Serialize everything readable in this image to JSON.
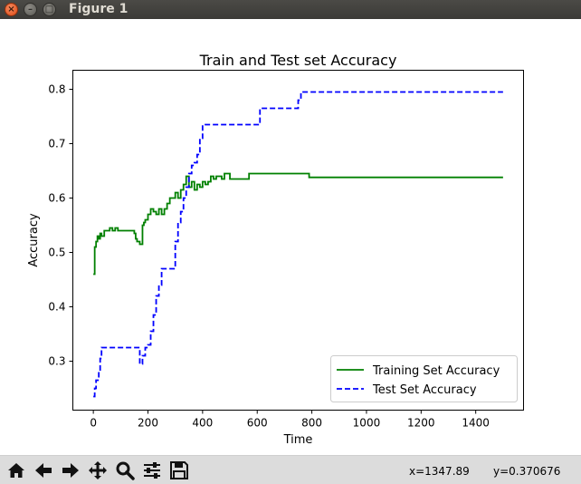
{
  "window": {
    "title": "Figure 1",
    "buttons": {
      "close": "×",
      "minimize": "–",
      "maximize": "□"
    }
  },
  "toolbar": {
    "buttons": [
      "home-icon",
      "back-icon",
      "forward-icon",
      "pan-icon",
      "zoom-icon",
      "configure-subplots-icon",
      "save-icon"
    ],
    "x_readout": "x=1347.89",
    "y_readout": "y=0.370676"
  },
  "colors": {
    "training": "#008000",
    "test": "#0000ff",
    "titlebar": "#3c3b37",
    "toolbar": "#dcdcdc"
  },
  "chart_data": {
    "type": "line",
    "title": "Train and Test set Accuracy",
    "xlabel": "Time",
    "ylabel": "Accuracy",
    "xlim": [
      -75,
      1575
    ],
    "ylim": [
      0.21,
      0.835
    ],
    "xticks": [
      0,
      200,
      400,
      600,
      800,
      1000,
      1200,
      1400
    ],
    "yticks": [
      0.3,
      0.4,
      0.5,
      0.6,
      0.7,
      0.8
    ],
    "xtick_labels": [
      "0",
      "200",
      "400",
      "600",
      "800",
      "1000",
      "1200",
      "1400"
    ],
    "ytick_labels": [
      "0.3",
      "0.4",
      "0.5",
      "0.6",
      "0.7",
      "0.8"
    ],
    "grid": false,
    "legend_position": "lower-right",
    "series": [
      {
        "name": "Training Set Accuracy",
        "style": "solid",
        "color": "#008000",
        "x": [
          0,
          5,
          10,
          15,
          20,
          25,
          30,
          40,
          50,
          60,
          70,
          80,
          90,
          100,
          110,
          120,
          130,
          140,
          150,
          155,
          160,
          170,
          180,
          185,
          190,
          200,
          210,
          220,
          230,
          240,
          250,
          260,
          270,
          280,
          290,
          300,
          310,
          320,
          330,
          340,
          350,
          360,
          370,
          380,
          390,
          400,
          410,
          420,
          430,
          440,
          450,
          470,
          480,
          500,
          520,
          540,
          560,
          570,
          580,
          600,
          650,
          700,
          750,
          780,
          790,
          800,
          900,
          1000,
          1200,
          1400,
          1500
        ],
        "y": [
          0.46,
          0.51,
          0.52,
          0.53,
          0.525,
          0.535,
          0.53,
          0.54,
          0.54,
          0.545,
          0.54,
          0.545,
          0.54,
          0.54,
          0.54,
          0.54,
          0.54,
          0.54,
          0.535,
          0.525,
          0.52,
          0.515,
          0.55,
          0.555,
          0.56,
          0.57,
          0.58,
          0.575,
          0.57,
          0.58,
          0.57,
          0.58,
          0.59,
          0.6,
          0.6,
          0.61,
          0.6,
          0.615,
          0.625,
          0.64,
          0.62,
          0.63,
          0.615,
          0.625,
          0.62,
          0.63,
          0.625,
          0.63,
          0.64,
          0.635,
          0.64,
          0.635,
          0.645,
          0.635,
          0.635,
          0.635,
          0.635,
          0.645,
          0.645,
          0.645,
          0.645,
          0.645,
          0.645,
          0.645,
          0.638,
          0.638,
          0.638,
          0.638,
          0.638,
          0.638,
          0.638
        ]
      },
      {
        "name": "Test Set Accuracy",
        "style": "dashed",
        "color": "#0000ff",
        "x": [
          0,
          5,
          10,
          15,
          20,
          25,
          30,
          160,
          170,
          180,
          190,
          200,
          210,
          220,
          230,
          240,
          250,
          300,
          310,
          320,
          330,
          340,
          350,
          360,
          370,
          380,
          390,
          400,
          600,
          610,
          740,
          750,
          760,
          780,
          1500
        ],
        "y": [
          0.235,
          0.25,
          0.265,
          0.265,
          0.28,
          0.305,
          0.325,
          0.325,
          0.295,
          0.31,
          0.325,
          0.33,
          0.355,
          0.385,
          0.42,
          0.44,
          0.47,
          0.52,
          0.555,
          0.575,
          0.6,
          0.62,
          0.645,
          0.66,
          0.665,
          0.68,
          0.71,
          0.735,
          0.735,
          0.765,
          0.765,
          0.78,
          0.795,
          0.795,
          0.795
        ]
      }
    ]
  }
}
